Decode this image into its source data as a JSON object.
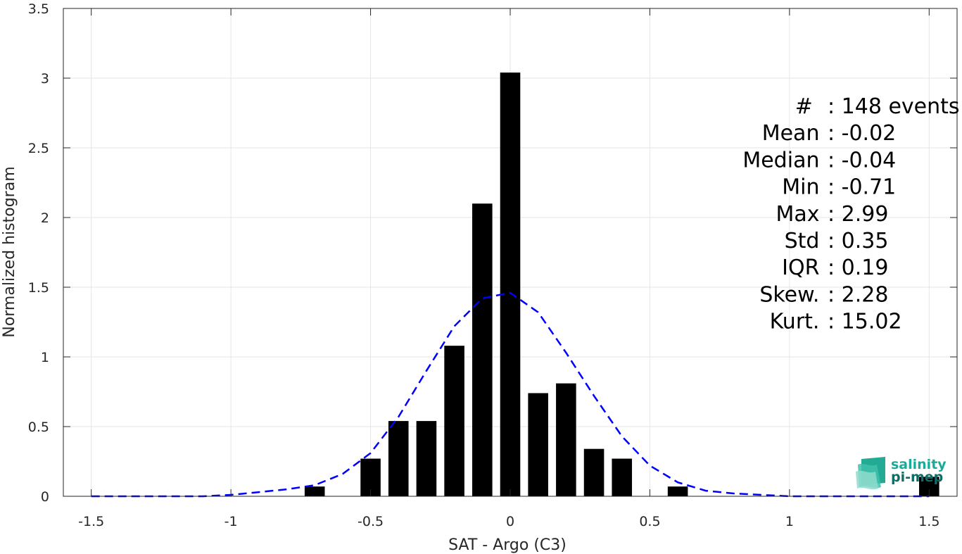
{
  "chart_data": {
    "type": "bar",
    "xlabel": "SAT - Argo (C3)",
    "ylabel": "Normalized histogram",
    "xlim": [
      -1.6,
      1.6
    ],
    "ylim": [
      0,
      3.5
    ],
    "xticks": [
      "-1.5",
      "-1",
      "-0.5",
      "0",
      "0.5",
      "1",
      "1.5"
    ],
    "yticks": [
      "0",
      "0.5",
      "1",
      "1.5",
      "2",
      "2.5",
      "3",
      "3.5"
    ],
    "grid": true,
    "bin_width": 0.1,
    "bars": [
      {
        "x": -0.7,
        "y": 0.07
      },
      {
        "x": -0.5,
        "y": 0.27
      },
      {
        "x": -0.4,
        "y": 0.54
      },
      {
        "x": -0.3,
        "y": 0.54
      },
      {
        "x": -0.2,
        "y": 1.08
      },
      {
        "x": -0.1,
        "y": 2.1
      },
      {
        "x": 0.0,
        "y": 3.04
      },
      {
        "x": 0.1,
        "y": 0.74
      },
      {
        "x": 0.2,
        "y": 0.81
      },
      {
        "x": 0.3,
        "y": 0.34
      },
      {
        "x": 0.4,
        "y": 0.27
      },
      {
        "x": 0.6,
        "y": 0.07
      },
      {
        "x": 1.5,
        "y": 0.14
      }
    ],
    "fit_curve": {
      "style": "dashed",
      "color": "#0000ff",
      "x": [
        -1.5,
        -1.3,
        -1.1,
        -1.0,
        -0.9,
        -0.8,
        -0.7,
        -0.6,
        -0.5,
        -0.4,
        -0.3,
        -0.2,
        -0.1,
        0.0,
        0.1,
        0.2,
        0.3,
        0.4,
        0.5,
        0.6,
        0.7,
        0.8,
        0.9,
        1.0,
        1.1,
        1.3,
        1.5
      ],
      "y": [
        0.0,
        0.0,
        0.0,
        0.01,
        0.03,
        0.05,
        0.08,
        0.16,
        0.31,
        0.57,
        0.9,
        1.22,
        1.42,
        1.46,
        1.32,
        1.03,
        0.72,
        0.43,
        0.22,
        0.1,
        0.04,
        0.02,
        0.01,
        0.0,
        0.0,
        0.0,
        0.0
      ]
    },
    "bar_color": "#000000"
  },
  "stats": [
    {
      "label": "#  ",
      "value": ": 148 events"
    },
    {
      "label": "Mean ",
      "value": ": -0.02"
    },
    {
      "label": "Median ",
      "value": ": -0.04"
    },
    {
      "label": "Min ",
      "value": ": -0.71"
    },
    {
      "label": "Max ",
      "value": ": 2.99"
    },
    {
      "label": "Std ",
      "value": ": 0.35"
    },
    {
      "label": "IQR ",
      "value": ": 0.19"
    },
    {
      "label": "Skew. ",
      "value": ": 2.28"
    },
    {
      "label": "Kurt. ",
      "value": ": 15.02"
    }
  ],
  "logo": {
    "line1": "salinity",
    "line2": "pi-mep",
    "color1": "#1aab9b",
    "color2": "#0e6b66"
  }
}
